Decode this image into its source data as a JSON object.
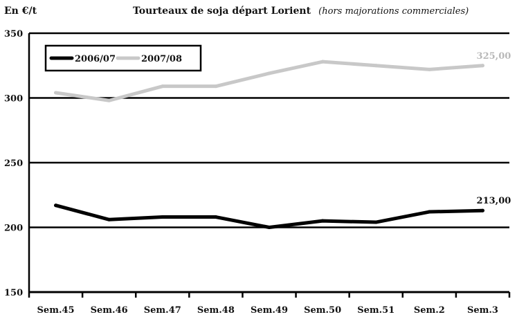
{
  "unit_label": "En €/t",
  "title": {
    "main": "Tourteaux de soja départ Lorient",
    "sub": "(hors majorations commerciales)"
  },
  "chart_data": {
    "type": "line",
    "title": "Tourteaux de soja départ Lorient (hors majorations commerciales)",
    "ylabel": "En €/t",
    "xlabel": "",
    "categories": [
      "Sem.45",
      "Sem.46",
      "Sem.47",
      "Sem.48",
      "Sem.49",
      "Sem.50",
      "Sem.51",
      "Sem.2",
      "Sem.3"
    ],
    "ylim": [
      150,
      350
    ],
    "yticks": [
      150,
      200,
      250,
      300,
      350
    ],
    "grid": "horizontal",
    "legend_position": "top-left",
    "series": [
      {
        "name": "2006/07",
        "color": "#000000",
        "values": [
          217,
          206,
          208,
          208,
          200,
          205,
          204,
          212,
          213
        ],
        "end_label": "213,00",
        "end_label_color": "#111111"
      },
      {
        "name": "2007/08",
        "color": "#c8c8c8",
        "values": [
          304,
          298,
          309,
          309,
          319,
          328,
          325,
          322,
          325
        ],
        "end_label": "325,00",
        "end_label_color": "#b8b8b8"
      }
    ]
  }
}
